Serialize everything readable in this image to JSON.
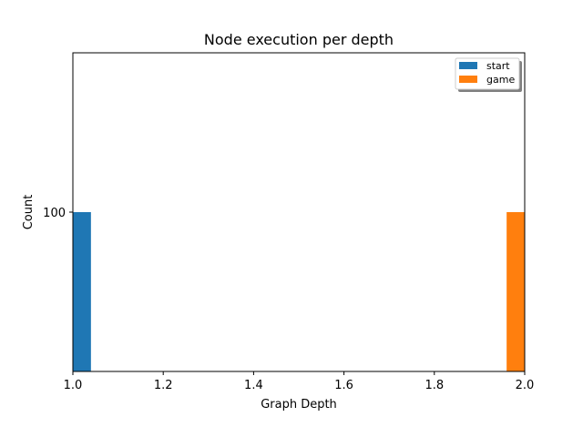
{
  "chart_data": {
    "type": "bar",
    "title": "Node execution per depth",
    "xlabel": "Graph Depth",
    "ylabel": "Count",
    "xlim": [
      1.0,
      2.0
    ],
    "ylim": [
      0,
      200
    ],
    "x_ticks": [
      "1.0",
      "1.2",
      "1.4",
      "1.6",
      "1.8",
      "2.0"
    ],
    "y_ticks": [
      "100"
    ],
    "legend_position": "top-right",
    "grid": false,
    "series": [
      {
        "name": "start",
        "color": "#1f77b4",
        "bars": [
          {
            "x_start": 1.0,
            "x_end": 1.04,
            "value": 100
          }
        ]
      },
      {
        "name": "game",
        "color": "#ff7f0e",
        "bars": [
          {
            "x_start": 1.96,
            "x_end": 2.0,
            "value": 100
          }
        ]
      }
    ]
  }
}
